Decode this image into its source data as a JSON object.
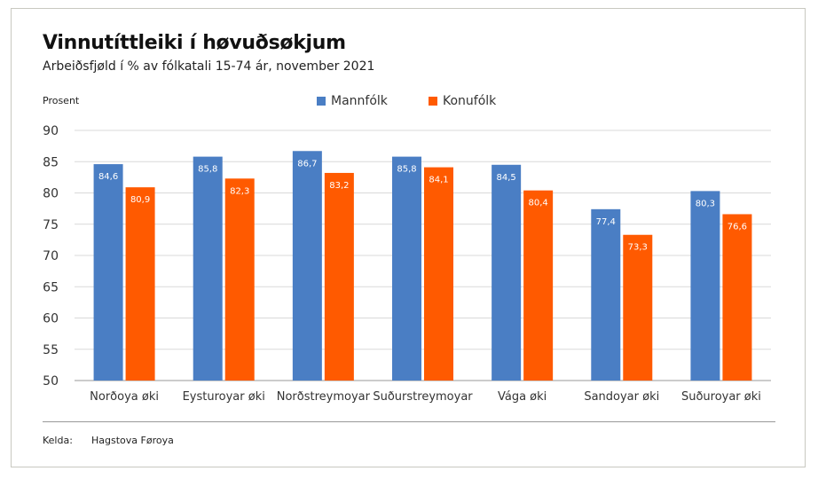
{
  "colors": {
    "men": "#4a7ec4",
    "women": "#ff5a00",
    "grid": "#d9d9d9",
    "axis": "#999999"
  },
  "source": {
    "label": "Kelda:",
    "value": "Hagstova Føroya"
  },
  "chart_data": {
    "type": "bar",
    "title": "Vinnutíttleiki í høvuðsøkjum",
    "subtitle": "Arbeiðsfjøld í % av fólkatali 15-74 ár, november 2021",
    "ylabel": "Prosent",
    "xlabel": "",
    "ylim": [
      50,
      90
    ],
    "yticks": [
      50,
      55,
      60,
      65,
      70,
      75,
      80,
      85,
      90
    ],
    "grid": true,
    "legend_position": "top-center",
    "categories": [
      "Norðoya øki",
      "Eysturoyar øki",
      "Norðstreymoyar",
      "Suðurstreymoyar",
      "Vága øki",
      "Sandoyar øki",
      "Suðuroyar øki"
    ],
    "series": [
      {
        "name": "Mannfólk",
        "values": [
          84.6,
          85.8,
          86.7,
          85.8,
          84.5,
          77.4,
          80.3
        ],
        "labels": [
          "84,6",
          "85,8",
          "86,7",
          "85,8",
          "84,5",
          "77,4",
          "80,3"
        ]
      },
      {
        "name": "Konufólk",
        "values": [
          80.9,
          82.3,
          83.2,
          84.1,
          80.4,
          73.3,
          76.6
        ],
        "labels": [
          "80,9",
          "82,3",
          "83,2",
          "84,1",
          "80,4",
          "73,3",
          "76,6"
        ]
      }
    ]
  }
}
